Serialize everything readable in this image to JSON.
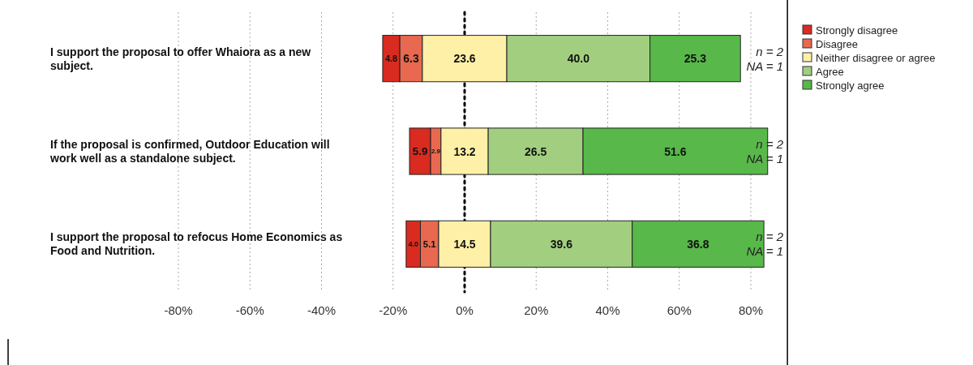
{
  "chart_data": {
    "type": "bar",
    "orientation": "horizontal",
    "categories": [
      "I support the proposal to offer Whaiora as a new subject.",
      "If the proposal is confirmed, Outdoor Education will work well as a standalone subject.",
      "I support the proposal to refocus Home Economics as Food and Nutrition."
    ],
    "series": [
      {
        "name": "Strongly disagree",
        "color": "#d92b20",
        "base": [
          -22.9,
          -15.4,
          -16.35
        ],
        "values": [
          4.8,
          5.9,
          4.0
        ],
        "value_labels": [
          "4.8",
          "5.9",
          "4.0"
        ]
      },
      {
        "name": "Disagree",
        "color": "#e8694f",
        "base": [
          -18.1,
          -9.5,
          -12.35
        ],
        "values": [
          6.3,
          2.9,
          5.1
        ],
        "value_labels": [
          "6.3",
          "2.9",
          "5.1"
        ]
      },
      {
        "name": "Neither disagree or agree",
        "color": "#fff0a8",
        "base": [
          -11.8,
          -6.6,
          -7.25
        ],
        "values": [
          23.6,
          13.2,
          14.5
        ],
        "value_labels": [
          "23.6",
          "13.2",
          "14.5"
        ]
      },
      {
        "name": "Agree",
        "color": "#a2cf7f",
        "base": [
          11.8,
          6.6,
          7.25
        ],
        "values": [
          40.0,
          26.5,
          39.6
        ],
        "value_labels": [
          "40.0",
          "26.5",
          "39.6"
        ]
      },
      {
        "name": "Strongly agree",
        "color": "#58b84a",
        "base": [
          51.8,
          33.1,
          46.85
        ],
        "values": [
          25.3,
          51.6,
          36.8
        ],
        "value_labels": [
          "25.3",
          "51.6",
          "36.8"
        ]
      }
    ],
    "xlim": [
      -80,
      90
    ],
    "xticks": [
      {
        "value": -80,
        "label": "-80%"
      },
      {
        "value": -60,
        "label": "-60%"
      },
      {
        "value": -40,
        "label": "-40%"
      },
      {
        "value": -20,
        "label": "-20%"
      },
      {
        "value": 0,
        "label": "0%"
      },
      {
        "value": 20,
        "label": "20%"
      },
      {
        "value": 40,
        "label": "40%"
      },
      {
        "value": 60,
        "label": "60%"
      },
      {
        "value": 80,
        "label": "80%"
      }
    ],
    "grid": "x",
    "ref_lines": [
      {
        "axis": "x",
        "value": 0,
        "color": "#000000",
        "line_style": "dotted"
      }
    ],
    "annotations": [
      "n = 2",
      "NA = 1",
      "n = 2",
      "NA = 1",
      "n = 2",
      "NA = 1"
    ],
    "legend": "top right"
  }
}
